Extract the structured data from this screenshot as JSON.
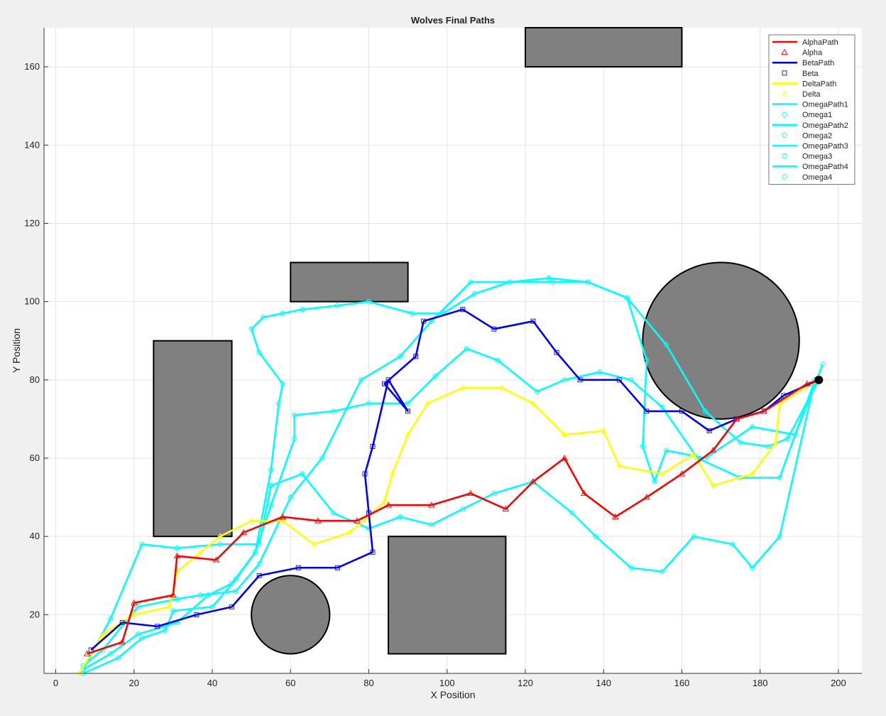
{
  "chart_data": {
    "type": "line",
    "title": "Wolves Final Paths",
    "xlabel": "X Position",
    "ylabel": "Y Position",
    "xlim": [
      -3,
      206
    ],
    "ylim": [
      5,
      170
    ],
    "xticks": [
      0,
      20,
      40,
      60,
      80,
      100,
      120,
      140,
      160,
      180,
      200
    ],
    "yticks": [
      20,
      40,
      60,
      80,
      100,
      120,
      140,
      160
    ],
    "grid": true,
    "legend_position": "top-right",
    "goal": {
      "x": 195,
      "y": 80
    },
    "obstacles": [
      {
        "shape": "rect",
        "x": [
          25,
          45
        ],
        "y": [
          40,
          90
        ]
      },
      {
        "shape": "rect",
        "x": [
          60,
          90
        ],
        "y": [
          100,
          110
        ]
      },
      {
        "shape": "rect",
        "x": [
          120,
          160
        ],
        "y": [
          160,
          170
        ]
      },
      {
        "shape": "rect",
        "x": [
          85,
          115
        ],
        "y": [
          10,
          40
        ]
      },
      {
        "shape": "circle",
        "cx": 60,
        "cy": 20,
        "r": 10
      },
      {
        "shape": "circle",
        "cx": 170,
        "cy": 90,
        "r": 20
      }
    ],
    "series": [
      {
        "name": "AlphaPath",
        "marker_name": "Alpha",
        "marker": "triangle",
        "color": "#ff0000",
        "x": [
          8,
          17,
          20,
          30,
          31,
          41,
          48,
          58,
          67,
          77,
          85,
          96,
          106,
          115,
          122,
          130,
          135,
          143,
          151,
          160,
          168,
          174,
          181,
          192,
          195
        ],
        "y": [
          10,
          13,
          23,
          25,
          35,
          34,
          41,
          45,
          44,
          44,
          48,
          48,
          51,
          47,
          54,
          60,
          51,
          45,
          50,
          56,
          62,
          70,
          72,
          79,
          80
        ]
      },
      {
        "name": "BetaPath",
        "marker_name": "Beta",
        "marker": "square",
        "color": "#0000ff",
        "x": [
          9,
          17,
          26,
          36,
          45,
          52,
          62,
          72,
          81,
          80,
          79,
          81,
          85,
          90,
          84,
          92,
          94,
          104,
          112,
          122,
          128,
          134,
          144,
          151,
          160,
          167,
          174,
          181,
          186,
          195
        ],
        "y": [
          11,
          18,
          17,
          20,
          22,
          30,
          32,
          32,
          36,
          46,
          56,
          63,
          80,
          72,
          79,
          86,
          95,
          98,
          93,
          95,
          87,
          80,
          80,
          72,
          72,
          67,
          70,
          72,
          76,
          80
        ]
      },
      {
        "name": "DeltaPath",
        "marker_name": "Delta",
        "marker": "diamond",
        "color": "#ffff00",
        "x": [
          6,
          12,
          20,
          29,
          31,
          37,
          42,
          50,
          58,
          66,
          75,
          80,
          84,
          86,
          90,
          95,
          104,
          114,
          122,
          130,
          140,
          144,
          155,
          163,
          168,
          178,
          184,
          185,
          195
        ],
        "y": [
          5,
          15,
          20,
          22,
          31,
          36,
          40,
          44,
          44,
          38,
          41,
          45,
          49,
          56,
          66,
          74,
          78,
          78,
          74,
          66,
          67,
          58,
          56,
          61,
          53,
          56,
          64,
          74,
          80
        ]
      },
      {
        "name": "OmegaPath1",
        "marker_name": "Omega1",
        "marker": "circle",
        "color": "#00ffff",
        "x": [
          7,
          12,
          21,
          31,
          37,
          46,
          52,
          60,
          68,
          78,
          88,
          96,
          106,
          116,
          126,
          136,
          146,
          151,
          150,
          153,
          156,
          166,
          178,
          189,
          196
        ],
        "y": [
          7,
          11,
          22,
          24,
          25,
          26,
          33,
          50,
          60,
          80,
          86,
          95,
          105,
          105,
          106,
          105,
          101,
          85,
          63,
          54,
          62,
          60,
          68,
          66,
          84
        ]
      },
      {
        "name": "OmegaPath2",
        "marker_name": "Omega2",
        "marker": "circle",
        "color": "#00ffff",
        "x": [
          7,
          14,
          22,
          31,
          42,
          52,
          55,
          63,
          71,
          80,
          88,
          96,
          104,
          112,
          122,
          132,
          138,
          147,
          155,
          163,
          173,
          178,
          185,
          194
        ],
        "y": [
          6,
          19,
          38,
          37,
          38,
          38,
          53,
          56,
          46,
          42,
          45,
          43,
          47,
          51,
          54,
          46,
          40,
          32,
          31,
          40,
          38,
          32,
          40,
          80
        ]
      },
      {
        "name": "OmegaPath3",
        "marker_name": "Omega3",
        "marker": "circle",
        "color": "#00ffff",
        "x": [
          7,
          16,
          22,
          28,
          30,
          40,
          46,
          51,
          55,
          61,
          61,
          71,
          80,
          90,
          97,
          105,
          113,
          123,
          130,
          139,
          147,
          155,
          164,
          175,
          185,
          194
        ],
        "y": [
          5,
          9,
          14,
          16,
          21,
          22,
          29,
          36,
          48,
          65,
          71,
          72,
          74,
          74,
          81,
          88,
          85,
          77,
          80,
          82,
          80,
          73,
          60,
          55,
          55,
          80
        ]
      },
      {
        "name": "OmegaPath4",
        "marker_name": "Omega4",
        "marker": "circle",
        "color": "#00ffff",
        "x": [
          7,
          14,
          21,
          31,
          39,
          45,
          51,
          55,
          57,
          58,
          52,
          50,
          53,
          58,
          63,
          72,
          80,
          91,
          99,
          107,
          116,
          127,
          136,
          146,
          156,
          166,
          175,
          182,
          187,
          195
        ],
        "y": [
          6,
          10,
          15,
          18,
          25,
          28,
          36,
          57,
          74,
          79,
          87,
          93,
          96,
          97,
          98,
          99,
          100,
          97,
          97,
          102,
          105,
          105,
          105,
          101,
          89,
          72,
          64,
          63,
          65,
          80
        ]
      }
    ]
  }
}
